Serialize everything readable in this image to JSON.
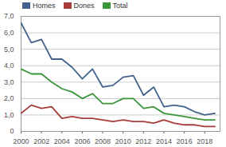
{
  "chart_data": {
    "type": "line",
    "x": [
      2000,
      2001,
      2002,
      2003,
      2004,
      2005,
      2006,
      2007,
      2008,
      2009,
      2010,
      2011,
      2012,
      2013,
      2014,
      2015,
      2016,
      2017,
      2018,
      2019
    ],
    "series": [
      {
        "name": "Homes",
        "color": "#44618d",
        "values": [
          6.6,
          5.4,
          5.6,
          4.4,
          4.4,
          3.9,
          3.2,
          3.8,
          2.7,
          2.8,
          3.3,
          3.4,
          2.2,
          2.7,
          1.5,
          1.6,
          1.5,
          1.2,
          1.0,
          1.1
        ]
      },
      {
        "name": "Dones",
        "color": "#a63c3c",
        "values": [
          1.1,
          1.6,
          1.4,
          1.5,
          0.8,
          0.9,
          0.8,
          0.8,
          0.7,
          0.6,
          0.7,
          0.6,
          0.6,
          0.5,
          0.7,
          0.5,
          0.4,
          0.4,
          0.3,
          0.3
        ]
      },
      {
        "name": "Total",
        "color": "#3a963a",
        "values": [
          3.8,
          3.5,
          3.5,
          3.0,
          2.6,
          2.4,
          2.0,
          2.3,
          1.7,
          1.7,
          2.0,
          2.0,
          1.4,
          1.5,
          1.1,
          1.0,
          0.9,
          0.8,
          0.7,
          0.7
        ]
      }
    ],
    "xlim": [
      2000,
      2019.5
    ],
    "xticks": [
      2000,
      2002,
      2004,
      2006,
      2008,
      2010,
      2012,
      2014,
      2016,
      2018
    ],
    "ylim": [
      0,
      7
    ],
    "yticks": [
      0,
      {
        "value": 1,
        "label": "1,0"
      },
      {
        "value": 2,
        "label": "2,0"
      },
      {
        "value": 3,
        "label": "3,0"
      },
      {
        "value": 4,
        "label": "4,0"
      },
      {
        "value": 5,
        "label": "5,0"
      },
      {
        "value": 6,
        "label": "6,0"
      },
      {
        "value": 7,
        "label": "7,0"
      }
    ],
    "grid": true,
    "legend": "top-left"
  }
}
